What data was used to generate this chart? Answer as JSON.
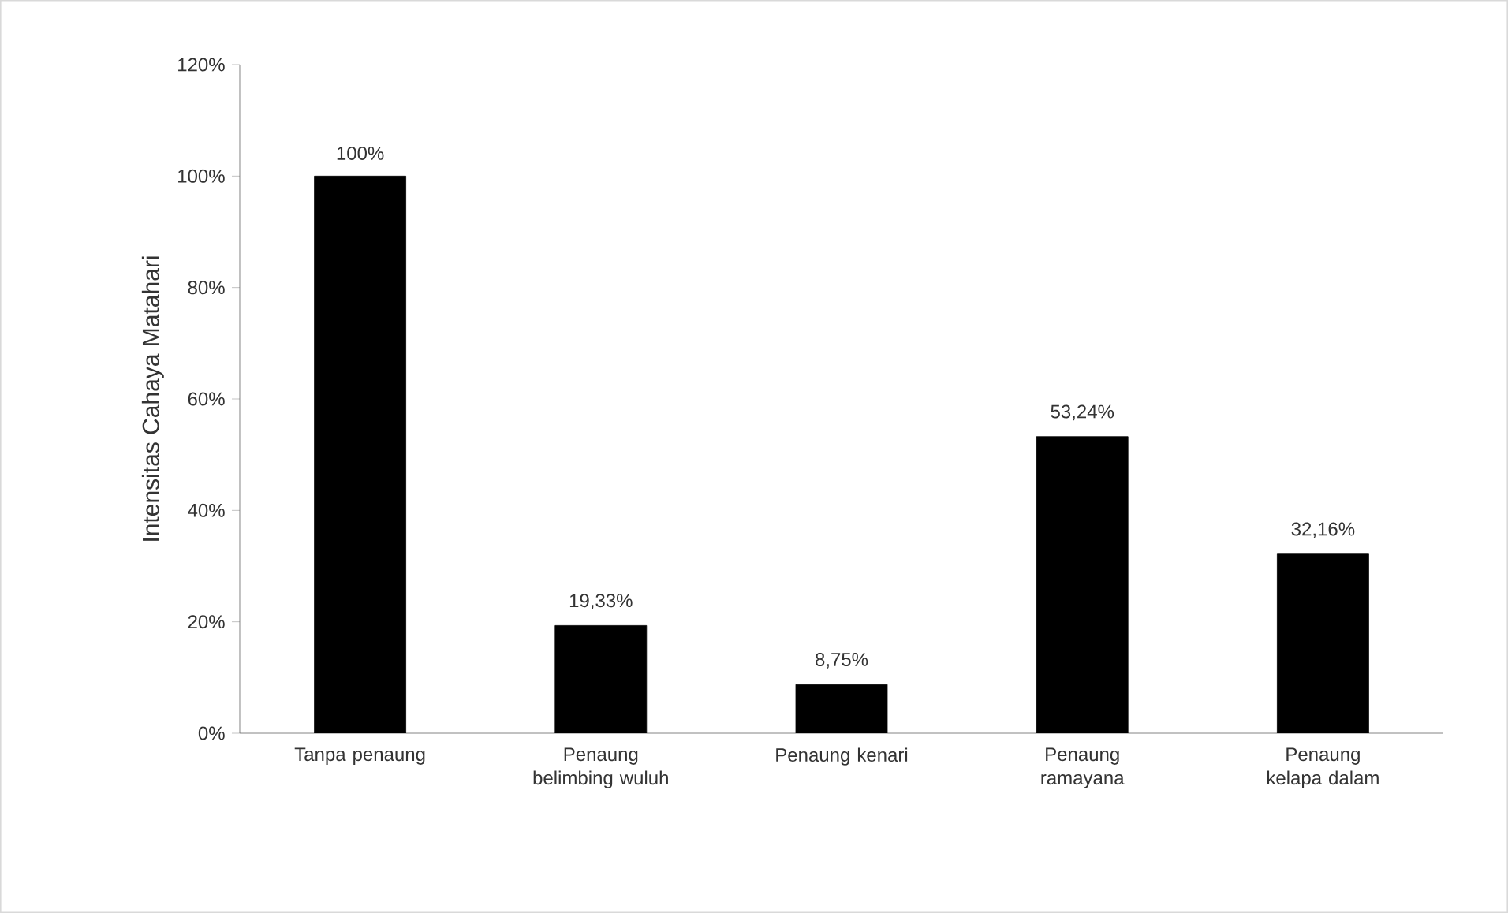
{
  "chart_data": {
    "type": "bar",
    "ylabel": "Intensitas Cahaya Matahari",
    "categories": [
      "Tanpa penaung",
      "Penaung belimbing wuluh",
      "Penaung kenari",
      "Penaung ramayana",
      "Penaung kelapa dalam"
    ],
    "values": [
      100,
      19.33,
      8.75,
      53.24,
      32.16
    ],
    "value_labels": [
      "100%",
      "19,33%",
      "8,75%",
      "53,24%",
      "32,16%"
    ],
    "color": "#000000",
    "ylim": [
      0,
      120
    ],
    "yticks": [
      {
        "value": 0,
        "label": "0%"
      },
      {
        "value": 20,
        "label": "20%"
      },
      {
        "value": 40,
        "label": "40%"
      },
      {
        "value": 60,
        "label": "60%"
      },
      {
        "value": 80,
        "label": "80%"
      },
      {
        "value": 100,
        "label": "100%"
      },
      {
        "value": 120,
        "label": "120%"
      }
    ],
    "grid": false
  }
}
